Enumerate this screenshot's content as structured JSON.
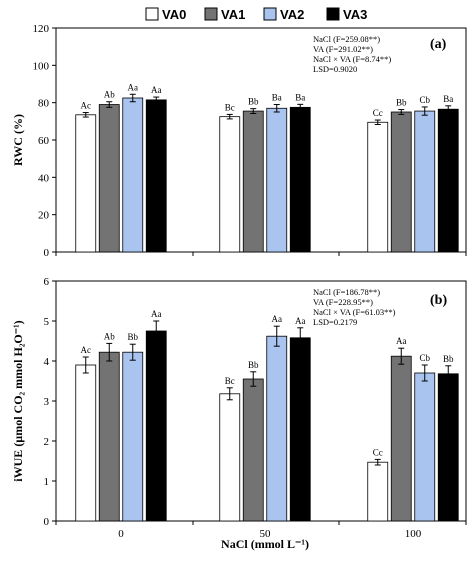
{
  "legend": [
    {
      "name": "VA0",
      "color": "#ffffff"
    },
    {
      "name": "VA1",
      "color": "#737373"
    },
    {
      "name": "VA2",
      "color": "#a9c4ee"
    },
    {
      "name": "VA3",
      "color": "#000000"
    }
  ],
  "chart_data": [
    {
      "type": "bar",
      "panel_label": "(a)",
      "ylabel": "RWC (%)",
      "ylim": [
        0,
        120
      ],
      "yticks": [
        0,
        20,
        40,
        60,
        80,
        100,
        120
      ],
      "categories": [
        "0",
        "50",
        "100"
      ],
      "series": [
        {
          "name": "VA0",
          "values": [
            73.5,
            72.5,
            69.5
          ],
          "errors": [
            1.2,
            1.2,
            1.2
          ],
          "letters": [
            "Ac",
            "Bc",
            "Cc"
          ]
        },
        {
          "name": "VA1",
          "values": [
            79.0,
            75.5,
            75.0
          ],
          "errors": [
            1.5,
            1.3,
            1.3
          ],
          "letters": [
            "Ab",
            "Bb",
            "Bb"
          ]
        },
        {
          "name": "VA2",
          "values": [
            82.5,
            77.0,
            75.5
          ],
          "errors": [
            2.0,
            2.0,
            2.2
          ],
          "letters": [
            "Aa",
            "Ba",
            "Cb"
          ]
        },
        {
          "name": "VA3",
          "values": [
            81.5,
            77.5,
            76.5
          ],
          "errors": [
            1.5,
            1.6,
            1.8
          ],
          "letters": [
            "Aa",
            "Ba",
            "Ba"
          ]
        }
      ],
      "stats": [
        "NaCl (F=259.08**)",
        "VA (F=291.02**)",
        "NaCl × VA (F=8.74**)",
        "LSD=0.9020"
      ],
      "grid": false
    },
    {
      "type": "bar",
      "panel_label": "(b)",
      "ylabel": "iWUE (µmol CO₂ mmol H₂O⁻¹)",
      "ylim": [
        0,
        6
      ],
      "yticks": [
        0,
        1,
        2,
        3,
        4,
        5,
        6
      ],
      "xlabel": "NaCl (mmol L⁻¹)",
      "categories": [
        "0",
        "50",
        "100"
      ],
      "series": [
        {
          "name": "VA0",
          "values": [
            3.9,
            3.18,
            1.47
          ],
          "errors": [
            0.2,
            0.15,
            0.07
          ],
          "letters": [
            "Ac",
            "Bc",
            "Cc"
          ]
        },
        {
          "name": "VA1",
          "values": [
            4.22,
            3.55,
            4.12
          ],
          "errors": [
            0.22,
            0.18,
            0.2
          ],
          "letters": [
            "Ab",
            "Bb",
            "Aa"
          ]
        },
        {
          "name": "VA2",
          "values": [
            4.22,
            4.62,
            3.7
          ],
          "errors": [
            0.2,
            0.25,
            0.2
          ],
          "letters": [
            "Bb",
            "Aa",
            "Cb"
          ]
        },
        {
          "name": "VA3",
          "values": [
            4.75,
            4.58,
            3.68
          ],
          "errors": [
            0.25,
            0.25,
            0.2
          ],
          "letters": [
            "Aa",
            "Aa",
            "Bb"
          ]
        }
      ],
      "stats": [
        "NaCl (F=186.78**)",
        "VA (F=228.95**)",
        "NaCl × VA (F=61.03**)",
        "LSD=0.2179"
      ],
      "grid": false
    }
  ]
}
